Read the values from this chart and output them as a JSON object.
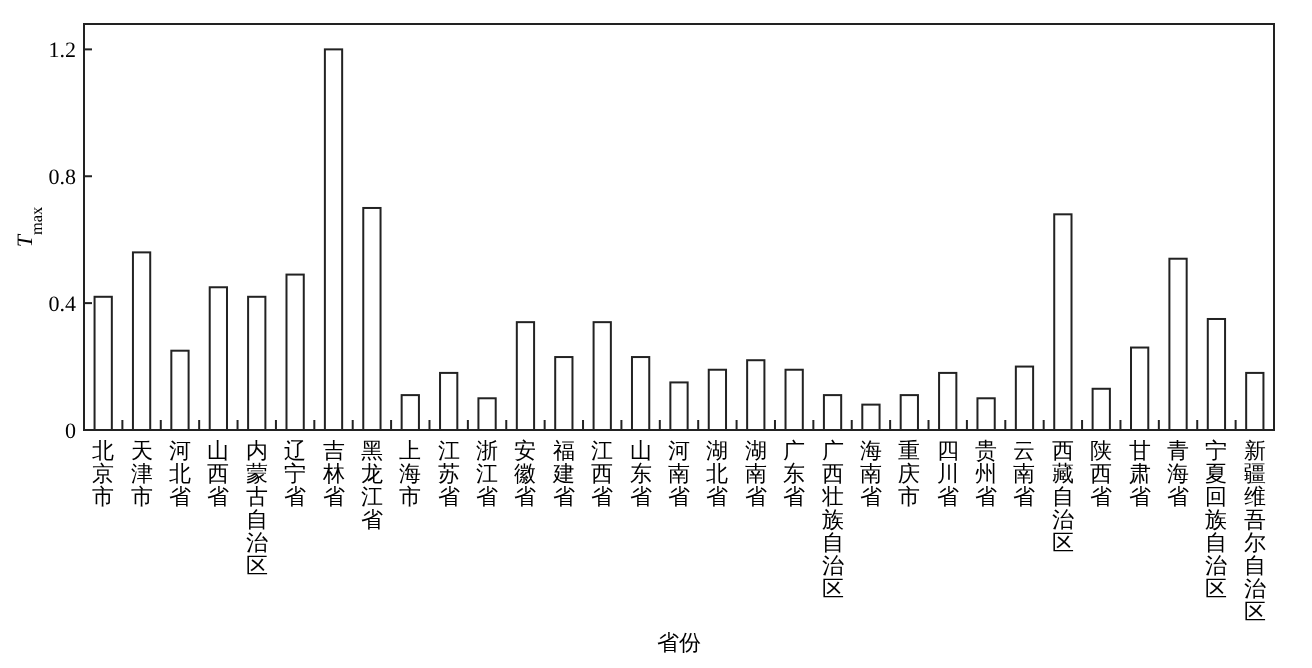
{
  "chart_data": {
    "type": "bar",
    "xlabel": "省份",
    "ylabel": "T$_{max}$",
    "categories": [
      "北京市",
      "天津市",
      "河北省",
      "山西省",
      "内蒙古自治区",
      "辽宁省",
      "吉林省",
      "黑龙江省",
      "上海市",
      "江苏省",
      "浙江省",
      "安徽省",
      "福建省",
      "江西省",
      "山东省",
      "河南省",
      "湖北省",
      "湖南省",
      "广东省",
      "广西壮族自治区",
      "海南省",
      "重庆市",
      "四川省",
      "贵州省",
      "云南省",
      "西藏自治区",
      "陕西省",
      "甘肃省",
      "青海省",
      "宁夏回族自治区",
      "新疆维吾尔自治区"
    ],
    "values": [
      0.42,
      0.56,
      0.25,
      0.45,
      0.42,
      0.49,
      1.2,
      0.7,
      0.11,
      0.18,
      0.1,
      0.34,
      0.23,
      0.34,
      0.23,
      0.15,
      0.19,
      0.22,
      0.19,
      0.11,
      0.08,
      0.11,
      0.18,
      0.1,
      0.2,
      0.68,
      0.13,
      0.26,
      0.54,
      0.35,
      0.18
    ],
    "color": "#ffffff",
    "ylim": [
      0,
      1.28
    ],
    "yticks": [
      0,
      0.4,
      0.8,
      1.2
    ],
    "grid": false
  }
}
